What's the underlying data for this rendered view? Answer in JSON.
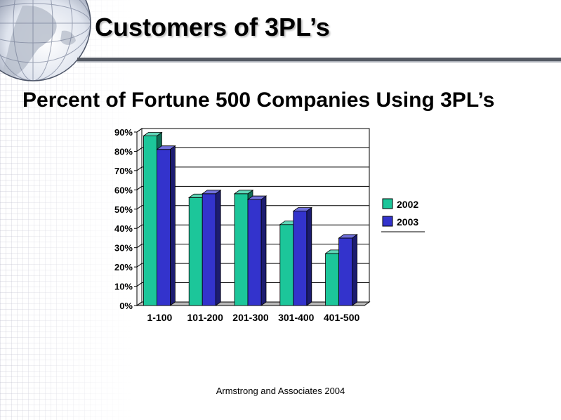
{
  "slide": {
    "title": "Customers of 3PL’s",
    "subtitle": "Percent of Fortune 500 Companies Using 3PL’s",
    "source": "Armstrong and Associates 2004",
    "globe_icon": "globe-icon"
  },
  "chart_data": {
    "type": "bar",
    "categories": [
      "1-100",
      "101-200",
      "201-300",
      "301-400",
      "401-500"
    ],
    "series": [
      {
        "name": "2002",
        "color": "#1cc69a",
        "values": [
          88,
          56,
          58,
          42,
          27
        ]
      },
      {
        "name": "2003",
        "color": "#3333cc",
        "values": [
          81,
          58,
          55,
          49,
          35
        ]
      }
    ],
    "yticks": [
      "0%",
      "10%",
      "20%",
      "30%",
      "40%",
      "50%",
      "60%",
      "70%",
      "80%",
      "90%"
    ],
    "ylim": [
      0,
      90
    ],
    "grid": true,
    "legend": "right"
  }
}
